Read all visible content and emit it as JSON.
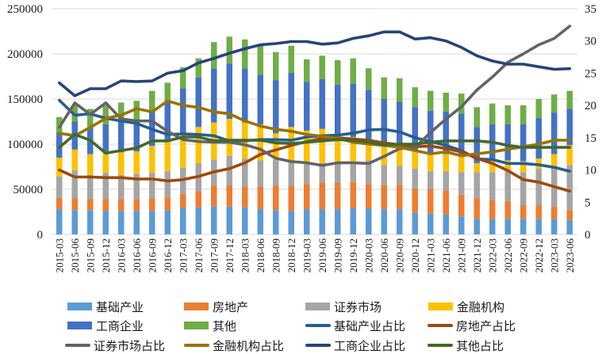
{
  "chart_data": {
    "type": "bar+line",
    "stacked": true,
    "title": "",
    "xlabel": "",
    "ylabel": "",
    "ylabel_right": "",
    "ylim": [
      0,
      250000
    ],
    "yticks": [
      "0",
      "50000",
      "100000",
      "150000",
      "200000",
      "250000"
    ],
    "ylim_right": [
      0,
      35
    ],
    "yticks_right": [
      "0",
      "5",
      "10",
      "15",
      "20",
      "25",
      "30",
      "35"
    ],
    "grid": true,
    "legend_position": "bottom",
    "categories": [
      "2015-03",
      "2015-06",
      "2015-09",
      "2015-12",
      "2016-03",
      "2016-06",
      "2016-09",
      "2016-12",
      "2017-03",
      "2017-06",
      "2017-09",
      "2017-12",
      "2018-03",
      "2018-06",
      "2018-09",
      "2018-12",
      "2019-03",
      "2019-06",
      "2019-09",
      "2019-12",
      "2020-03",
      "2020-06",
      "2020-09",
      "2020-12",
      "2021-03",
      "2021-06",
      "2021-09",
      "2021-12",
      "2022-03",
      "2022-06",
      "2022-09",
      "2022-12",
      "2023-03",
      "2023-06"
    ],
    "bar_series": [
      {
        "name": "基础产业",
        "color": "#5B9BD5",
        "values": [
          28000,
          27000,
          27000,
          26000,
          26000,
          26000,
          26000,
          27000,
          29000,
          30000,
          31000,
          31000,
          30000,
          28000,
          27000,
          26000,
          28000,
          28000,
          28000,
          29000,
          29000,
          28000,
          28000,
          24000,
          23000,
          22000,
          20000,
          17000,
          17000,
          17000,
          17000,
          17000,
          17000,
          16000
        ]
      },
      {
        "name": "房地产",
        "color": "#ED7D31",
        "values": [
          13000,
          13000,
          12000,
          13000,
          13000,
          13000,
          14000,
          14000,
          16000,
          18000,
          23000,
          23000,
          23000,
          25000,
          27000,
          28000,
          28000,
          29000,
          29000,
          29000,
          27000,
          27000,
          27000,
          27000,
          27000,
          27000,
          24000,
          23000,
          21000,
          20000,
          15000,
          15000,
          14000,
          11000
        ]
      },
      {
        "name": "证券市场",
        "color": "#A5A5A5",
        "values": [
          23000,
          31000,
          27000,
          29000,
          27000,
          28000,
          28000,
          29000,
          29000,
          31000,
          29000,
          33000,
          31000,
          29000,
          28000,
          28000,
          25000,
          22000,
          22000,
          20000,
          26000,
          22000,
          21000,
          22000,
          20000,
          21000,
          25000,
          29000,
          31000,
          35000,
          37000,
          41000,
          45000,
          50000
        ]
      },
      {
        "name": "金融机构",
        "color": "#FFC000",
        "values": [
          21000,
          23000,
          23000,
          24000,
          25000,
          25000,
          30000,
          35000,
          38000,
          40000,
          41000,
          41000,
          40000,
          40000,
          30000,
          37000,
          34000,
          38000,
          32000,
          30000,
          21000,
          23000,
          21000,
          20000,
          19000,
          19000,
          18000,
          10000,
          13000,
          10000,
          12000,
          11000,
          13000,
          22000
        ]
      },
      {
        "name": "工商企业",
        "color": "#4472C4",
        "values": [
          28000,
          31000,
          30000,
          30000,
          35000,
          35000,
          40000,
          42000,
          50000,
          55000,
          60000,
          61000,
          60000,
          55000,
          59000,
          60000,
          54000,
          55000,
          55000,
          59000,
          57000,
          50000,
          50000,
          48000,
          48000,
          47000,
          47000,
          40000,
          40000,
          40000,
          41000,
          45000,
          46000,
          40000
        ]
      },
      {
        "name": "其他",
        "color": "#70AD47",
        "values": [
          17000,
          18000,
          20000,
          21000,
          20000,
          21000,
          21000,
          21000,
          23000,
          21000,
          29000,
          30000,
          32000,
          33000,
          31000,
          30000,
          25000,
          26000,
          27000,
          28000,
          24000,
          24000,
          26000,
          22000,
          22000,
          21000,
          22000,
          22000,
          23000,
          21000,
          21000,
          21000,
          20000,
          20000
        ]
      }
    ],
    "line_series": [
      {
        "name": "基础产业占比",
        "color": "#255E91",
        "values": [
          20.8,
          18.5,
          18.7,
          18.0,
          17.6,
          17.2,
          16.3,
          15.5,
          15.6,
          15.5,
          15.3,
          14.5,
          14.5,
          14.7,
          14.7,
          14.6,
          15.1,
          15.3,
          15.4,
          15.7,
          16.2,
          16.3,
          15.9,
          15.0,
          14.4,
          13.8,
          13.0,
          11.7,
          11.6,
          11.0,
          11.0,
          10.8,
          10.4,
          9.8
        ]
      },
      {
        "name": "房地产占比",
        "color": "#9E480E",
        "values": [
          10.0,
          8.9,
          8.9,
          8.8,
          8.8,
          8.6,
          8.6,
          8.3,
          8.5,
          9.0,
          9.7,
          10.2,
          11.1,
          12.4,
          13.1,
          13.8,
          14.4,
          14.9,
          15.0,
          14.8,
          14.6,
          14.2,
          13.9,
          13.6,
          13.7,
          13.3,
          12.8,
          11.8,
          11.0,
          9.9,
          8.5,
          8.1,
          7.4,
          6.7
        ]
      },
      {
        "name": "证券市场占比",
        "color": "#636363",
        "values": [
          16.6,
          20.4,
          18.6,
          20.4,
          17.9,
          17.6,
          17.6,
          16.0,
          14.7,
          14.4,
          14.3,
          14.3,
          13.9,
          13.2,
          11.8,
          11.3,
          11.1,
          10.7,
          11.1,
          11.1,
          11.0,
          12.1,
          13.3,
          13.5,
          15.8,
          17.9,
          19.8,
          22.4,
          24.4,
          26.7,
          28.0,
          29.4,
          30.4,
          32.3
        ]
      },
      {
        "name": "金融机构占比",
        "color": "#997300",
        "values": [
          15.7,
          15.3,
          16.6,
          18.0,
          18.5,
          19.5,
          19.0,
          20.7,
          20.0,
          19.7,
          19.0,
          18.7,
          17.6,
          16.8,
          16.3,
          16.0,
          15.5,
          15.2,
          14.9,
          14.3,
          14.0,
          13.8,
          13.5,
          13.0,
          12.5,
          12.8,
          12.2,
          12.5,
          12.8,
          13.2,
          13.6,
          14.0,
          14.6,
          14.6
        ]
      },
      {
        "name": "工商企业占比",
        "color": "#264478",
        "values": [
          23.5,
          21.5,
          22.6,
          22.6,
          23.8,
          23.7,
          23.8,
          25.0,
          25.4,
          26.6,
          27.3,
          28.1,
          28.8,
          29.4,
          29.6,
          29.9,
          29.9,
          29.5,
          29.7,
          30.4,
          30.8,
          31.4,
          31.4,
          30.3,
          30.5,
          30.0,
          29.0,
          27.7,
          26.9,
          26.4,
          26.4,
          26.0,
          25.6,
          25.7
        ]
      },
      {
        "name": "其他占比",
        "color": "#43682B",
        "values": [
          13.5,
          15.5,
          14.6,
          12.6,
          13.0,
          13.4,
          14.5,
          14.5,
          15.1,
          15.1,
          14.5,
          14.6,
          14.6,
          14.6,
          14.2,
          14.1,
          14.3,
          14.5,
          14.7,
          14.6,
          14.3,
          13.9,
          14.0,
          14.0,
          14.3,
          14.5,
          14.5,
          14.5,
          14.3,
          13.8,
          13.5,
          13.5,
          13.5,
          13.5
        ]
      }
    ]
  }
}
